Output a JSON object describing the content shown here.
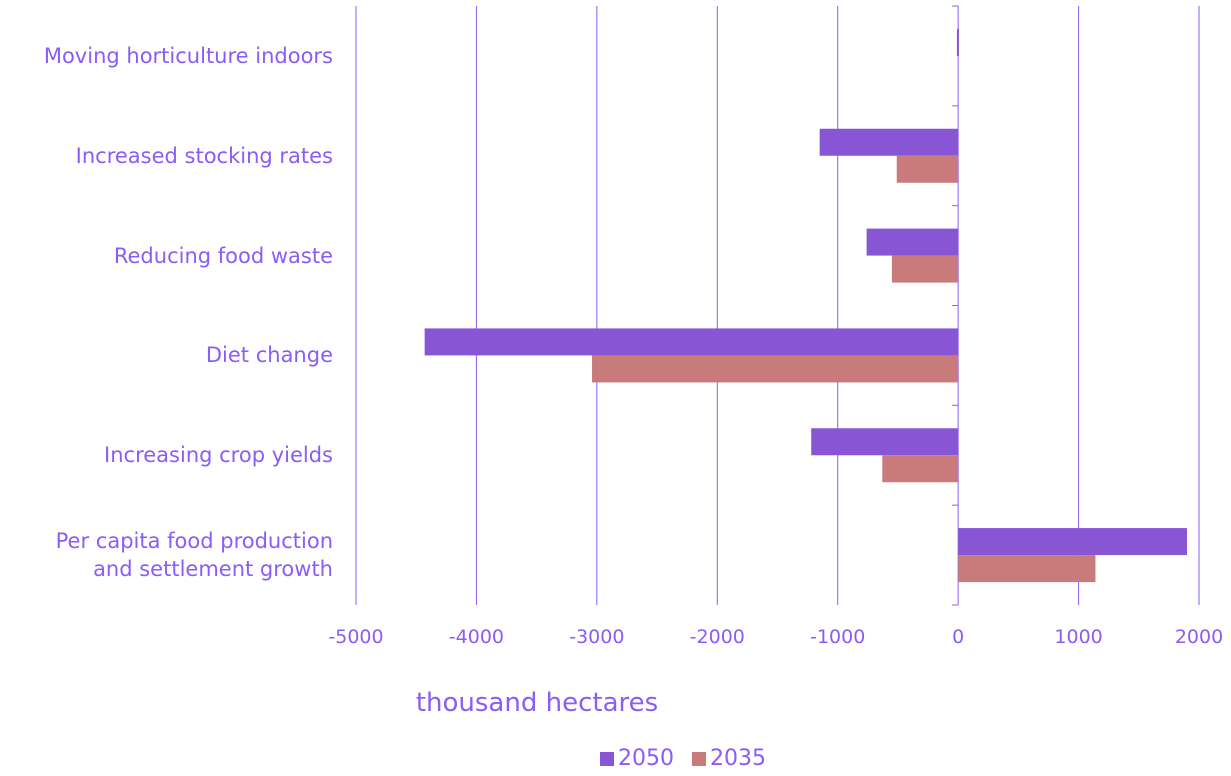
{
  "chart_data": {
    "type": "bar",
    "orientation": "horizontal",
    "categories": [
      "Moving horticulture indoors",
      "Increased stocking rates",
      "Reducing food waste",
      "Diet change",
      "Increasing crop yields",
      "Per capita food production\nand settlement growth"
    ],
    "series": [
      {
        "name": "2050",
        "color": "#8855d4",
        "values": [
          -10,
          -1150,
          -760,
          -4430,
          -1220,
          1900
        ]
      },
      {
        "name": "2035",
        "color": "#c97a7a",
        "values": [
          0,
          -510,
          -550,
          -3040,
          -630,
          1140
        ]
      }
    ],
    "xlabel": "thousand hectares",
    "xlim": [
      -5000,
      2000
    ],
    "xticks": [
      "-5000",
      "-4000",
      "-3000",
      "-2000",
      "-1000",
      "0",
      "1000",
      "2000"
    ],
    "grid": true,
    "legend_position": "bottom"
  }
}
